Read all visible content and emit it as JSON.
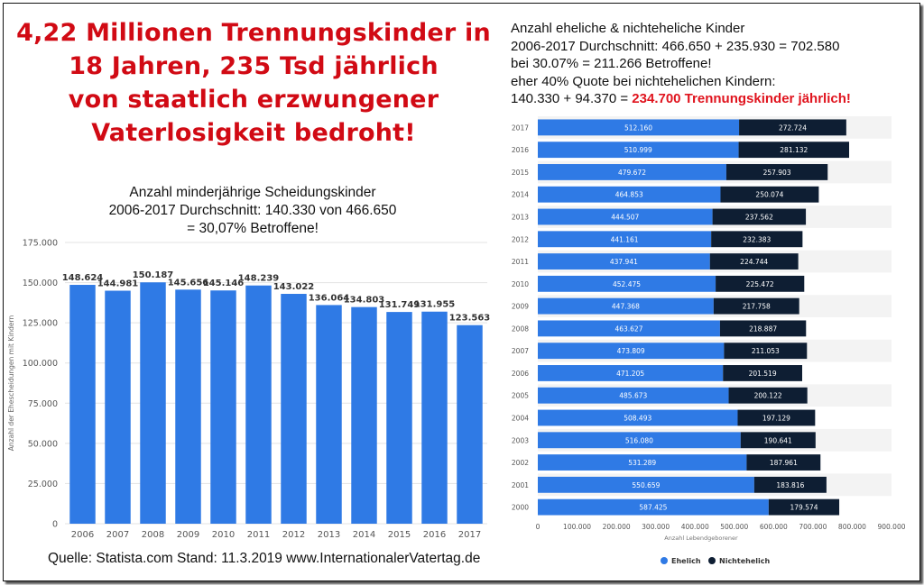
{
  "headline": {
    "lines": [
      "4,22 Millionen Trennungskinder in",
      "18 Jahren, 235 Tsd jährlich",
      "von staatlich erzwungener",
      "Vaterlosigkeit bedroht!"
    ]
  },
  "left_title": {
    "lines": [
      "Anzahl minderjährige Scheidungskinder",
      "2006-2017 Durchschnitt: 140.330 von 466.650",
      "= 30,07% Betroffene!"
    ]
  },
  "right_title": {
    "line1": "Anzahl eheliche & nichteheliche Kinder",
    "line2": "2006-2017 Durchschnitt: 466.650 + 235.930 = 702.580",
    "line3": "bei 30.07% = 211.266 Betroffene!",
    "line4": "eher 40% Quote bei nichtehelichen Kindern:",
    "line5_prefix": "140.330 + 94.370 = ",
    "line5_highlight": "234.700 Trennungskinder jährlich!"
  },
  "source": "Quelle: Statista.com Stand: 11.3.2019  www.InternationalerVatertag.de",
  "colors": {
    "headline": "#d10a14",
    "blue": "#2f7ae5",
    "navy": "#0e1e33",
    "grid": "#e6e6e6"
  },
  "chart_data": [
    {
      "type": "bar",
      "title": "Anzahl minderjährige Scheidungskinder",
      "xlabel": "",
      "ylabel": "Anzahl der Ehescheidungen mit Kindern",
      "ylim": [
        0,
        175000
      ],
      "yticks": [
        "0",
        "25.000",
        "50.000",
        "75.000",
        "100.000",
        "125.000",
        "150.000",
        "175.000"
      ],
      "ytick_values": [
        0,
        25000,
        50000,
        75000,
        100000,
        125000,
        150000,
        175000
      ],
      "categories": [
        "2006",
        "2007",
        "2008",
        "2009",
        "2010",
        "2011",
        "2012",
        "2013",
        "2014",
        "2015",
        "2016",
        "2017"
      ],
      "values": [
        148624,
        144981,
        150187,
        145656,
        145146,
        148239,
        143022,
        136064,
        134803,
        131749,
        131955,
        123563
      ],
      "labels": [
        "148.624",
        "144.981",
        "150.187",
        "145.656",
        "145.146",
        "148.239",
        "143.022",
        "136.064",
        "134.803",
        "131.749",
        "131.955",
        "123.563"
      ]
    },
    {
      "type": "bar",
      "orientation": "horizontal",
      "stacked": true,
      "title": "Anzahl eheliche & nichteheliche Kinder",
      "xlabel": "Anzahl Lebendgeborener",
      "ylabel": "",
      "xlim": [
        0,
        900000
      ],
      "xticks": [
        "0",
        "100.000",
        "200.000",
        "300.000",
        "400.000",
        "500.000",
        "600.000",
        "700.000",
        "800.000",
        "900.000"
      ],
      "xtick_values": [
        0,
        100000,
        200000,
        300000,
        400000,
        500000,
        600000,
        700000,
        800000,
        900000
      ],
      "legend": "bottom",
      "categories": [
        "2017",
        "2016",
        "2015",
        "2014",
        "2013",
        "2012",
        "2011",
        "2010",
        "2009",
        "2008",
        "2007",
        "2006",
        "2005",
        "2004",
        "2003",
        "2002",
        "2001",
        "2000"
      ],
      "series": [
        {
          "name": "Ehelich",
          "values": [
            512160,
            510999,
            479672,
            464853,
            444507,
            441161,
            437941,
            452475,
            447368,
            463627,
            473809,
            471205,
            485673,
            508493,
            516080,
            531289,
            550659,
            587425
          ],
          "labels": [
            "512.160",
            "510.999",
            "479.672",
            "464.853",
            "444.507",
            "441.161",
            "437.941",
            "452.475",
            "447.368",
            "463.627",
            "473.809",
            "471.205",
            "485.673",
            "508.493",
            "516.080",
            "531.289",
            "550.659",
            "587.425"
          ]
        },
        {
          "name": "Nichtehelich",
          "values": [
            272724,
            281132,
            257903,
            250074,
            237562,
            232383,
            224744,
            225472,
            217758,
            218887,
            211053,
            201519,
            200122,
            197129,
            190641,
            187961,
            183816,
            179574
          ],
          "labels": [
            "272.724",
            "281.132",
            "257.903",
            "250.074",
            "237.562",
            "232.383",
            "224.744",
            "225.472",
            "217.758",
            "218.887",
            "211.053",
            "201.519",
            "200.122",
            "197.129",
            "190.641",
            "187.961",
            "183.816",
            "179.574"
          ]
        }
      ]
    }
  ]
}
